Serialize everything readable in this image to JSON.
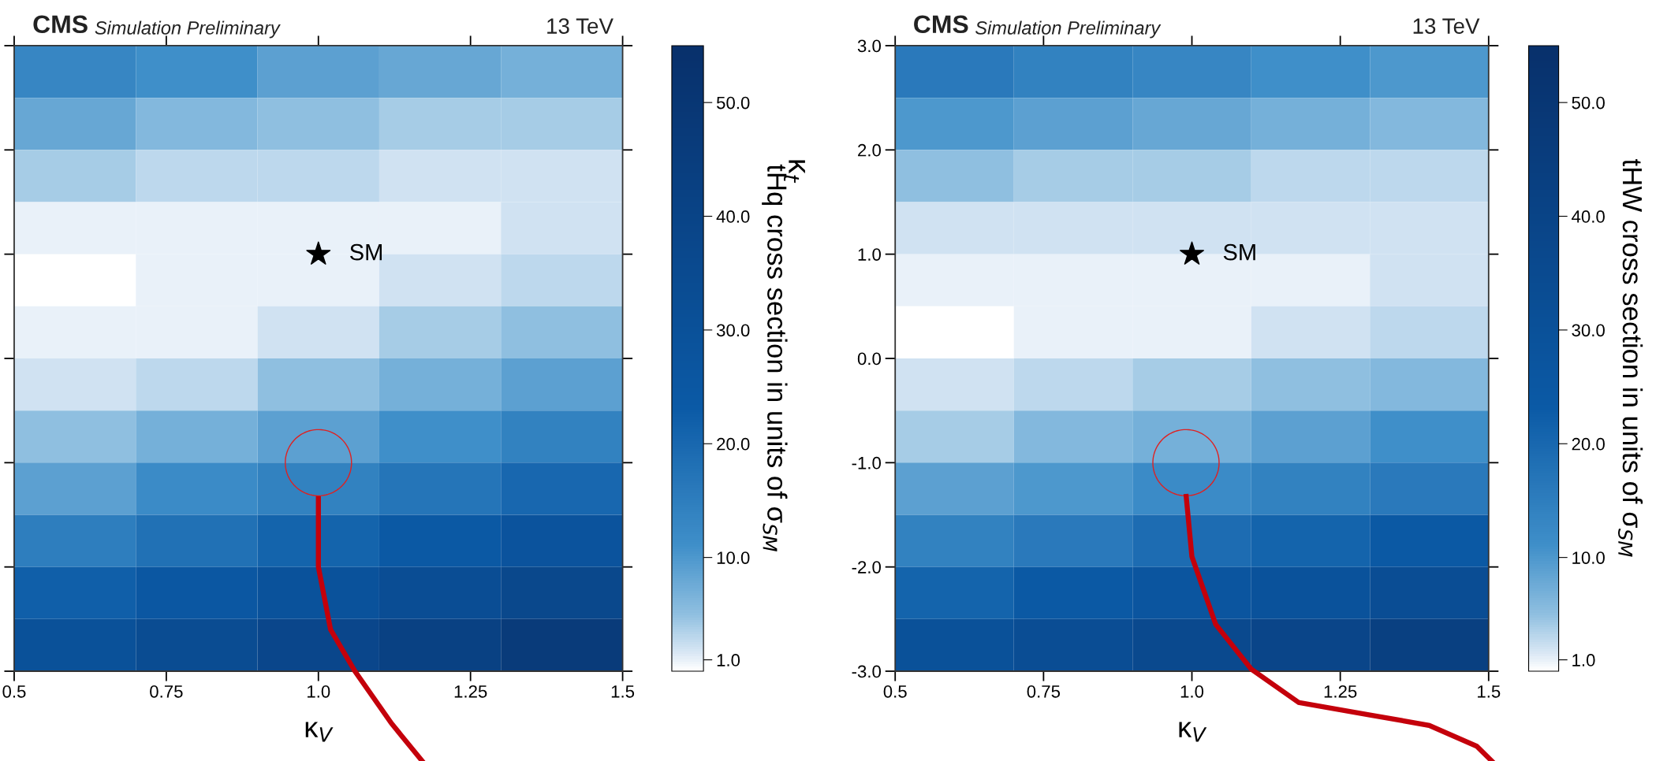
{
  "chart_data": [
    {
      "type": "heatmap",
      "xlabel": "κ$_{V}$",
      "clabel": "tHq cross section in units of σ$_{SM}$",
      "annotations": [
        "CMS",
        "Simulation Preliminary",
        "13 TeV"
      ],
      "series": [
        {
          "type": "scatter",
          "name": "SM",
          "color": "#000000",
          "x": [
            1.0
          ],
          "values": [
            1.0
          ]
        }
      ],
      "marker": "star",
      "xlim": [
        0.5,
        1.5
      ],
      "xticks": [
        0.5,
        0.75,
        {
          "value": 1.0,
          "label": "1.0"
        },
        1.25,
        1.5
      ],
      "ylim": [
        -3,
        3
      ],
      "yticks": [
        {
          "value": -3,
          "label": null
        },
        {
          "value": -2,
          "label": null
        },
        {
          "value": -1,
          "label": null
        },
        {
          "value": 0,
          "label": null
        },
        {
          "value": 1,
          "label": null
        },
        {
          "value": 2,
          "label": null
        },
        {
          "value": 3,
          "label": null
        }
      ],
      "tick_labels": "x",
      "clim": [
        0,
        55
      ],
      "cticks": [
        {
          "value": 1,
          "label": "1.0"
        },
        {
          "value": 10,
          "label": "10.0"
        },
        {
          "value": 20,
          "label": "20.0"
        },
        {
          "value": 30,
          "label": "30.0"
        },
        {
          "value": 40,
          "label": "40.0"
        },
        {
          "value": 50,
          "label": "50.0"
        }
      ],
      "cells": [
        [
          13,
          11,
          9,
          8,
          7
        ],
        [
          8,
          6,
          5,
          4,
          4
        ],
        [
          4,
          3,
          3,
          2,
          2
        ],
        [
          1,
          1,
          1,
          1,
          2
        ],
        [
          0,
          1,
          1,
          2,
          3
        ],
        [
          1,
          1,
          2,
          4,
          5
        ],
        [
          2,
          3,
          5,
          7,
          9
        ],
        [
          5,
          7,
          9,
          11,
          14
        ],
        [
          9,
          12,
          14,
          17,
          20
        ],
        [
          15,
          18,
          21,
          24,
          28
        ],
        [
          22,
          25,
          29,
          33,
          37
        ],
        [
          30,
          34,
          38,
          42,
          47
        ]
      ]
    },
    {
      "type": "heatmap",
      "xlabel": "κ$_{V}$",
      "ylabel": "κ$_{t}$",
      "clabel": "tHW cross section in units of σ$_{SM}$",
      "annotations": [
        "CMS",
        "Simulation Preliminary",
        "13 TeV"
      ],
      "series": [
        {
          "type": "scatter",
          "name": "SM",
          "color": "#000000",
          "x": [
            1.0
          ],
          "values": [
            1.0
          ]
        }
      ],
      "marker": "star",
      "xlim": [
        0.5,
        1.5
      ],
      "xticks": [
        0.5,
        0.75,
        {
          "value": 1.0,
          "label": "1.0"
        },
        1.25,
        1.5
      ],
      "ylim": [
        -3,
        3
      ],
      "yticks": [
        {
          "value": -3,
          "label": "-3.0"
        },
        {
          "value": -2,
          "label": "-2.0"
        },
        {
          "value": -1,
          "label": "-1.0"
        },
        {
          "value": 0,
          "label": "0.0"
        },
        {
          "value": 1,
          "label": "1.0"
        },
        {
          "value": 2,
          "label": "2.0"
        },
        {
          "value": 3,
          "label": "3.0"
        }
      ],
      "clim": [
        0,
        55
      ],
      "cticks": [
        {
          "value": 1,
          "label": "1.0"
        },
        {
          "value": 10,
          "label": "10.0"
        },
        {
          "value": 20,
          "label": "20.0"
        },
        {
          "value": 30,
          "label": "30.0"
        },
        {
          "value": 40,
          "label": "40.0"
        },
        {
          "value": 50,
          "label": "50.0"
        }
      ],
      "cells": [
        [
          16,
          14,
          13,
          11,
          10
        ],
        [
          10,
          9,
          8,
          7,
          6
        ],
        [
          5,
          4,
          4,
          3,
          3
        ],
        [
          2,
          2,
          2,
          2,
          2
        ],
        [
          1,
          1,
          1,
          1,
          2
        ],
        [
          0,
          1,
          1,
          2,
          3
        ],
        [
          2,
          3,
          4,
          5,
          6
        ],
        [
          4,
          6,
          7,
          9,
          11
        ],
        [
          9,
          10,
          12,
          14,
          16
        ],
        [
          14,
          16,
          19,
          21,
          24
        ],
        [
          21,
          24,
          27,
          29,
          33
        ],
        [
          30,
          33,
          36,
          39,
          43
        ]
      ]
    }
  ]
}
